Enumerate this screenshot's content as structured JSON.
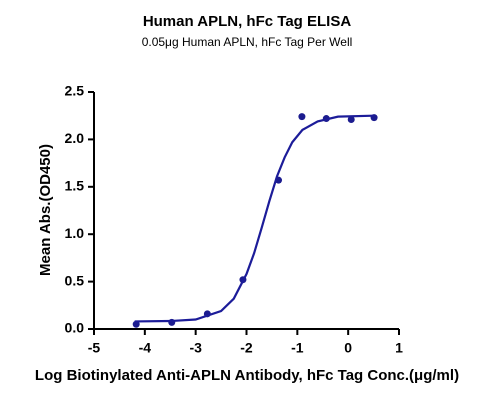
{
  "chart_data": {
    "type": "scatter",
    "title": "Human APLN, hFc Tag ELISA",
    "subtitle": "0.05μg Human APLN, hFc Tag Per Well",
    "x_label": "Log Biotinylated Anti-APLN Antibody, hFc Tag Conc.(μg/ml)",
    "y_label": "Mean Abs.(OD450)",
    "xlim": [
      -5,
      1
    ],
    "xticks": [
      -5,
      -4,
      -3,
      -2,
      -1,
      0,
      1
    ],
    "ylim": [
      0,
      2.5
    ],
    "yticks": [
      {
        "value": 0,
        "label": "0.0"
      },
      0.5,
      {
        "value": 1,
        "label": "1.0"
      },
      1.5,
      {
        "value": 2,
        "label": "2.0"
      },
      2.5
    ],
    "series": [
      {
        "type": "scatter",
        "color": "#1c1c8f",
        "x": [
          -4.17,
          -3.47,
          -2.77,
          -2.07,
          -1.37,
          -0.91,
          -0.43,
          0.06,
          0.51
        ],
        "values": [
          0.05,
          0.07,
          0.16,
          0.52,
          1.57,
          2.24,
          2.22,
          2.21,
          2.23
        ]
      },
      {
        "type": "line",
        "color": "#1c1c99",
        "x": [
          -4.2,
          -3.5,
          -3.0,
          -2.5,
          -2.25,
          -2.0,
          -1.85,
          -1.7,
          -1.55,
          -1.4,
          -1.25,
          -1.1,
          -0.9,
          -0.6,
          -0.2,
          0.5
        ],
        "values": [
          0.08,
          0.084,
          0.1,
          0.19,
          0.32,
          0.58,
          0.8,
          1.07,
          1.35,
          1.61,
          1.81,
          1.97,
          2.1,
          2.19,
          2.24,
          2.25
        ]
      }
    ]
  }
}
